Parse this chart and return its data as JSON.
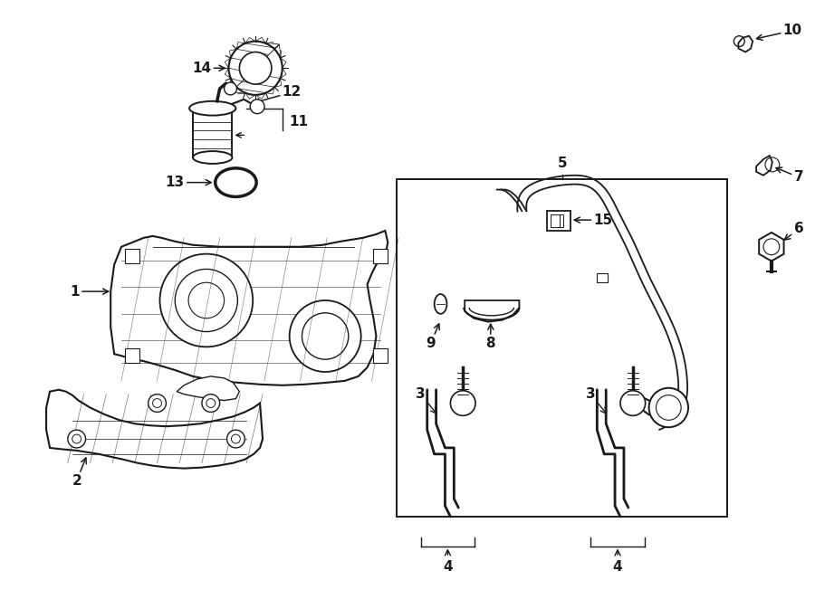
{
  "bg_color": "#ffffff",
  "line_color": "#1a1a1a",
  "fig_width": 9.0,
  "fig_height": 6.62,
  "dpi": 100,
  "lw_main": 1.4,
  "lw_thick": 2.2,
  "lw_thin": 0.7,
  "label_fontsize": 11,
  "title_visible": false
}
